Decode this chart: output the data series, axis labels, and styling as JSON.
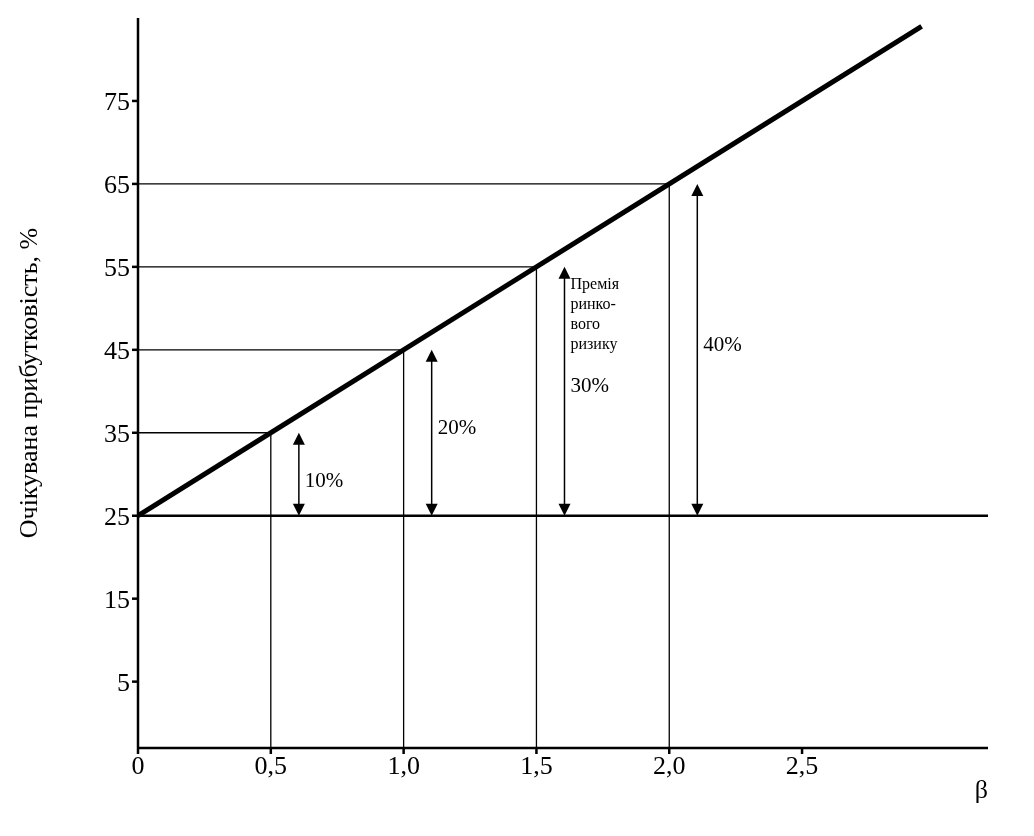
{
  "chart_data": {
    "type": "line",
    "xlabel": "β",
    "ylabel": "Очікувана прибутковість, %",
    "xlim": [
      0,
      3.2
    ],
    "ylim": [
      -3,
      85
    ],
    "xticks": [
      0,
      {
        "value": 0.5,
        "label": "0,5"
      },
      {
        "value": 1,
        "label": "1,0"
      },
      {
        "value": 1.5,
        "label": "1,5"
      },
      {
        "value": 2,
        "label": "2,0"
      },
      {
        "value": 2.5,
        "label": "2,5"
      }
    ],
    "yticks": [
      5,
      15,
      25,
      35,
      45,
      55,
      65,
      75
    ],
    "series": [
      {
        "color": "#000000",
        "x": [
          0,
          2.95
        ],
        "values": [
          25,
          84
        ]
      },
      {
        "color": "#000000",
        "x": [
          0,
          0.5,
          0.5
        ],
        "values": [
          35,
          35,
          -3
        ]
      },
      {
        "color": "#000000",
        "x": [
          0,
          1,
          1
        ],
        "values": [
          45,
          45,
          -3
        ]
      },
      {
        "color": "#000000",
        "x": [
          0,
          1.5,
          1.5
        ],
        "values": [
          55,
          55,
          -3
        ]
      },
      {
        "color": "#000000",
        "x": [
          0,
          2,
          2
        ],
        "values": [
          65,
          65,
          -3
        ]
      }
    ],
    "ref_lines": [
      {
        "axis": "y",
        "value": 25,
        "color": "#000000"
      }
    ],
    "annotations": [
      "10%",
      "20%",
      "30%",
      "40%",
      "Премія\nринко-\nвого\nризику"
    ],
    "grid": false,
    "legend": false,
    "marker": "none",
    "line_style": "solid"
  }
}
